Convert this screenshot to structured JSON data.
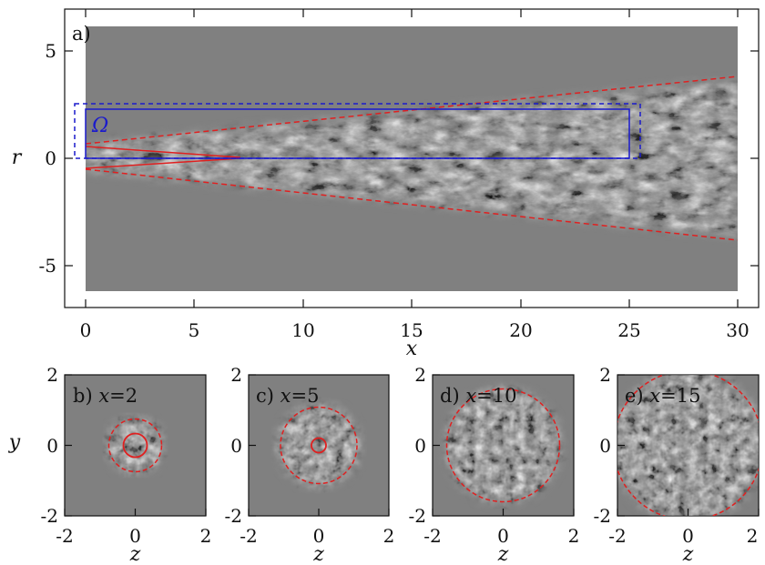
{
  "panel_a": {
    "label": "a)",
    "xlabel": "x",
    "ylabel": "r",
    "xticks": [
      "0",
      "5",
      "10",
      "15",
      "20",
      "25",
      "30"
    ],
    "yticks": [
      "5",
      "0",
      "-5"
    ],
    "domain_label": "Ω"
  },
  "panels_small": [
    {
      "label": "b)",
      "title_var": "x",
      "title_val": "=2"
    },
    {
      "label": "c)",
      "title_var": "x",
      "title_val": "=5"
    },
    {
      "label": "d)",
      "title_var": "x",
      "title_val": "=10"
    },
    {
      "label": "e)",
      "title_var": "x",
      "title_val": "=15"
    }
  ],
  "small_axes": {
    "xlabel": "z",
    "ylabel": "y",
    "xticks": [
      "-2",
      "0",
      "2"
    ],
    "yticks": [
      "2",
      "0",
      "-2"
    ]
  },
  "colors": {
    "background_field": "#808080",
    "cone": "#e02020",
    "domain_box": "#1a1acc"
  }
}
